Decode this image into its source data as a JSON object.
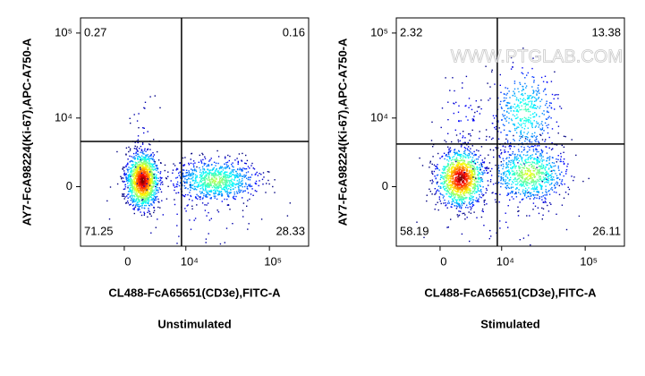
{
  "chart_data": [
    {
      "type": "scatter",
      "title": "Unstimulated",
      "xlabel": "CL488-FcA65651(CD3e),FITC-A",
      "ylabel": "AY7-FcA98224(Ki-67),APC-A750-A",
      "scale": "biexponential",
      "xlim": [
        -5800,
        290000
      ],
      "ylim": [
        -7700,
        150000
      ],
      "xticks": [
        0,
        {
          "value": 10000,
          "label": "10⁴"
        },
        {
          "value": 100000,
          "label": "10⁵"
        }
      ],
      "yticks": [
        0,
        {
          "value": 10000,
          "label": "10⁴"
        },
        {
          "value": 100000,
          "label": "10⁵"
        }
      ],
      "gates": {
        "x": 8800,
        "y": 5000
      },
      "quadrants": {
        "upper_left": 0.27,
        "upper_right": 0.16,
        "lower_left": 71.25,
        "lower_right": 28.33
      }
    },
    {
      "type": "scatter",
      "title": "Stimulated",
      "xlabel": "CL488-FcA65651(CD3e),FITC-A",
      "ylabel": "AY7-FcA98224(Ki-67),APC-A750-A",
      "scale": "biexponential",
      "xlim": [
        -5800,
        290000
      ],
      "ylim": [
        -7700,
        150000
      ],
      "xticks": [
        0,
        {
          "value": 10000,
          "label": "10⁴"
        },
        {
          "value": 100000,
          "label": "10⁵"
        }
      ],
      "yticks": [
        0,
        {
          "value": 10000,
          "label": "10⁴"
        },
        {
          "value": 100000,
          "label": "10⁵"
        }
      ],
      "gates": {
        "x": 8800,
        "y": 4600
      },
      "quadrants": {
        "upper_left": 2.32,
        "upper_right": 13.38,
        "lower_left": 58.19,
        "lower_right": 26.11
      },
      "watermark": "WWW.PTGLAB.COM"
    }
  ]
}
